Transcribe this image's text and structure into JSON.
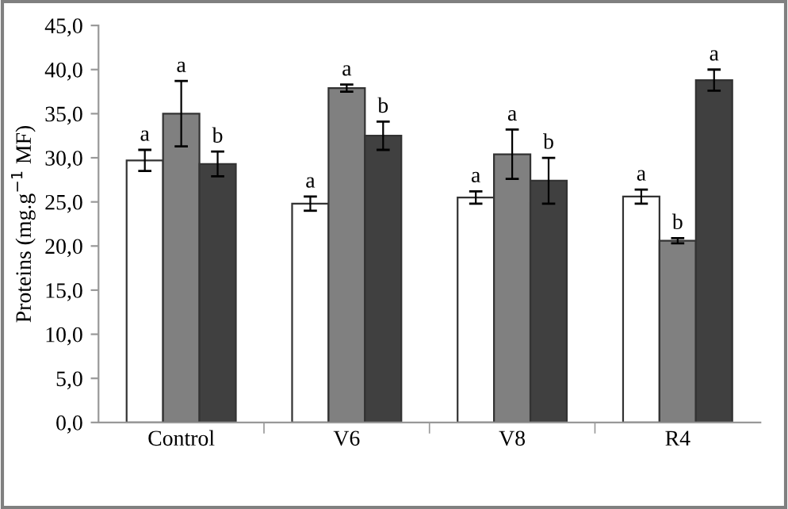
{
  "chart_data": {
    "type": "bar",
    "ylabel": "Proteins (mg.g$^{−1}$ MF)",
    "categories": [
      "Control",
      "V6",
      "V8",
      "R4"
    ],
    "series": [
      {
        "color": "#ffffff",
        "values": [
          29.7,
          24.8,
          25.5,
          25.6
        ],
        "errors": [
          1.2,
          0.8,
          0.7,
          0.8
        ],
        "value_labels": [
          "a",
          "a",
          "a",
          "a"
        ]
      },
      {
        "color": "#808080",
        "values": [
          35.0,
          37.9,
          30.4,
          20.6
        ],
        "errors": [
          3.7,
          0.4,
          2.8,
          0.3
        ],
        "value_labels": [
          "a",
          "a",
          "a",
          "b"
        ]
      },
      {
        "color": "#404040",
        "values": [
          29.3,
          32.5,
          27.4,
          38.8
        ],
        "errors": [
          1.4,
          1.6,
          2.6,
          1.2
        ],
        "value_labels": [
          "b",
          "b",
          "b",
          "a"
        ]
      }
    ],
    "ylim": [
      0,
      45
    ],
    "yticks": [
      {
        "value": 0,
        "label": "0,0"
      },
      {
        "value": 5,
        "label": "5,0"
      },
      {
        "value": 10,
        "label": "10,0"
      },
      {
        "value": 15,
        "label": "15,0"
      },
      {
        "value": 20,
        "label": "20,0"
      },
      {
        "value": 25,
        "label": "25,0"
      },
      {
        "value": 30,
        "label": "30,0"
      },
      {
        "value": 35,
        "label": "35,0"
      },
      {
        "value": 40,
        "label": "40,0"
      },
      {
        "value": 45,
        "label": "45,0"
      }
    ],
    "grid": false,
    "legend": false
  }
}
